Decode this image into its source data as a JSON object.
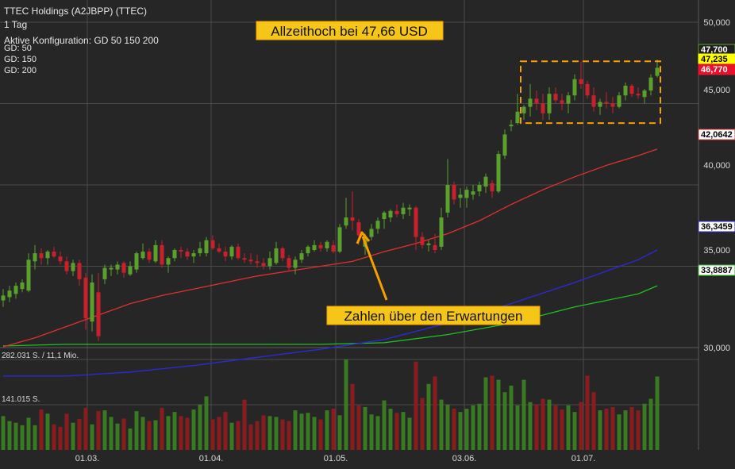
{
  "header": {
    "instrument": "TTEC Holdings (A2JBPP) (TTEC)",
    "interval": "1 Tag",
    "configuration": "Aktive Konfiguration: GD 50 150 200",
    "legend": [
      {
        "label": "GD: 50",
        "color": "#e03030"
      },
      {
        "label": "GD: 150",
        "color": "#2a2adf"
      },
      {
        "label": "GD: 200",
        "color": "#20c020"
      }
    ]
  },
  "colors": {
    "background": "#262626",
    "grid": "#4a4a4a",
    "up_candle": "#5aa02c",
    "down_candle": "#c8202c",
    "volume_up": "#3a7a22",
    "volume_down": "#8a1c20",
    "volume_neutral": "#5a5a5a",
    "ma50": "#e03030",
    "ma150": "#2a2adf",
    "ma200": "#20c020",
    "annotation_bg": "#f5c518",
    "annotation_border": "#f5a000"
  },
  "chart_data": {
    "type": "candlestick",
    "title": "TTEC Holdings (A2JBPP) (TTEC)",
    "y_axis": {
      "ticks": [
        "50,000",
        "45,000",
        "40,000",
        "35,000",
        "30,000"
      ],
      "tick_values": [
        50,
        45,
        40,
        35,
        30
      ]
    },
    "x_axis": {
      "ticks": [
        "01.03.",
        "01.04.",
        "01.05.",
        "03.06.",
        "01.07."
      ]
    },
    "volume_axis": {
      "ticks": [
        "282.031 S. / 11,1 Mio.",
        "141.015 S."
      ]
    },
    "price_tags": [
      {
        "label": "47,700",
        "value": 47.7,
        "bg": "#1f1f1f",
        "fg": "#ffffff",
        "border": "#5aa02c"
      },
      {
        "label": "47,235",
        "value": 47.235,
        "bg": "#ffff00",
        "fg": "#000000",
        "border": "#ffff00"
      },
      {
        "label": "46,770",
        "value": 46.77,
        "bg": "#e8102c",
        "fg": "#ffffff",
        "border": "#e8102c"
      },
      {
        "label": "42,0642",
        "value": 42.0642,
        "bg": "#ffffff",
        "fg": "#000000",
        "border": "#e03030"
      },
      {
        "label": "36,3459",
        "value": 36.3459,
        "bg": "#ffffff",
        "fg": "#000000",
        "border": "#2a2adf"
      },
      {
        "label": "33,8887",
        "value": 33.8887,
        "bg": "#ffffff",
        "fg": "#000000",
        "border": "#20c020"
      }
    ],
    "annotations": [
      {
        "id": "ath",
        "text": "Allzeithoch bei 47,66 USD"
      },
      {
        "id": "earnings",
        "text": "Zahlen über den Erwartungen"
      }
    ],
    "ath_range": {
      "high": 47.6,
      "low": 43.8
    },
    "candles": [
      {
        "o": 32.9,
        "h": 33.6,
        "l": 32.5,
        "c": 33.2
      },
      {
        "o": 33.1,
        "h": 33.8,
        "l": 32.8,
        "c": 33.5
      },
      {
        "o": 33.3,
        "h": 34.0,
        "l": 33.0,
        "c": 33.8
      },
      {
        "o": 33.6,
        "h": 34.2,
        "l": 33.4,
        "c": 34.0
      },
      {
        "o": 33.5,
        "h": 35.8,
        "l": 33.4,
        "c": 35.4
      },
      {
        "o": 35.3,
        "h": 36.3,
        "l": 34.8,
        "c": 35.8
      },
      {
        "o": 35.8,
        "h": 36.1,
        "l": 35.1,
        "c": 35.5
      },
      {
        "o": 35.5,
        "h": 36.0,
        "l": 35.1,
        "c": 35.9
      },
      {
        "o": 35.9,
        "h": 36.2,
        "l": 35.5,
        "c": 35.6
      },
      {
        "o": 35.6,
        "h": 35.9,
        "l": 35.1,
        "c": 35.3
      },
      {
        "o": 35.3,
        "h": 35.6,
        "l": 34.5,
        "c": 34.7
      },
      {
        "o": 34.7,
        "h": 35.4,
        "l": 34.4,
        "c": 35.2
      },
      {
        "o": 35.2,
        "h": 35.4,
        "l": 33.8,
        "c": 34.2
      },
      {
        "o": 34.3,
        "h": 34.6,
        "l": 31.1,
        "c": 31.8
      },
      {
        "o": 31.6,
        "h": 34.5,
        "l": 31.0,
        "c": 34.0
      },
      {
        "o": 33.4,
        "h": 34.6,
        "l": 30.4,
        "c": 30.7
      },
      {
        "o": 34.2,
        "h": 35.1,
        "l": 33.9,
        "c": 34.9
      },
      {
        "o": 34.8,
        "h": 35.1,
        "l": 34.4,
        "c": 34.9
      },
      {
        "o": 34.8,
        "h": 35.3,
        "l": 34.5,
        "c": 35.1
      },
      {
        "o": 35.2,
        "h": 35.3,
        "l": 34.3,
        "c": 34.6
      },
      {
        "o": 34.5,
        "h": 35.3,
        "l": 34.4,
        "c": 35.0
      },
      {
        "o": 34.8,
        "h": 35.9,
        "l": 34.6,
        "c": 35.8
      },
      {
        "o": 35.5,
        "h": 36.4,
        "l": 35.4,
        "c": 35.9
      },
      {
        "o": 35.9,
        "h": 36.1,
        "l": 35.2,
        "c": 35.4
      },
      {
        "o": 35.3,
        "h": 36.6,
        "l": 35.2,
        "c": 36.3
      },
      {
        "o": 36.3,
        "h": 36.6,
        "l": 34.9,
        "c": 35.1
      },
      {
        "o": 35.1,
        "h": 35.6,
        "l": 34.6,
        "c": 35.5
      },
      {
        "o": 35.5,
        "h": 36.1,
        "l": 35.3,
        "c": 36.0
      },
      {
        "o": 36.0,
        "h": 36.2,
        "l": 35.5,
        "c": 35.9
      },
      {
        "o": 35.9,
        "h": 36.1,
        "l": 35.4,
        "c": 35.6
      },
      {
        "o": 35.6,
        "h": 36.0,
        "l": 35.2,
        "c": 35.8
      },
      {
        "o": 35.8,
        "h": 36.5,
        "l": 35.6,
        "c": 36.1
      },
      {
        "o": 35.8,
        "h": 36.8,
        "l": 35.6,
        "c": 36.6
      },
      {
        "o": 36.6,
        "h": 36.9,
        "l": 36.0,
        "c": 36.1
      },
      {
        "o": 36.1,
        "h": 36.4,
        "l": 35.8,
        "c": 35.9
      },
      {
        "o": 35.9,
        "h": 36.2,
        "l": 35.3,
        "c": 35.6
      },
      {
        "o": 35.6,
        "h": 36.3,
        "l": 35.4,
        "c": 36.2
      },
      {
        "o": 36.2,
        "h": 36.4,
        "l": 35.4,
        "c": 35.5
      },
      {
        "o": 35.5,
        "h": 35.8,
        "l": 35.2,
        "c": 35.4
      },
      {
        "o": 35.4,
        "h": 35.8,
        "l": 35.1,
        "c": 35.3
      },
      {
        "o": 35.3,
        "h": 35.7,
        "l": 34.9,
        "c": 35.2
      },
      {
        "o": 35.2,
        "h": 35.5,
        "l": 34.8,
        "c": 35.0
      },
      {
        "o": 35.0,
        "h": 35.9,
        "l": 34.8,
        "c": 35.5
      },
      {
        "o": 35.2,
        "h": 36.5,
        "l": 35.1,
        "c": 36.1
      },
      {
        "o": 36.1,
        "h": 36.2,
        "l": 35.3,
        "c": 35.5
      },
      {
        "o": 35.5,
        "h": 35.7,
        "l": 34.7,
        "c": 34.9
      },
      {
        "o": 34.9,
        "h": 35.6,
        "l": 34.5,
        "c": 35.4
      },
      {
        "o": 35.4,
        "h": 36.0,
        "l": 35.2,
        "c": 35.8
      },
      {
        "o": 35.8,
        "h": 36.3,
        "l": 35.6,
        "c": 36.2
      },
      {
        "o": 36.0,
        "h": 36.6,
        "l": 35.9,
        "c": 36.3
      },
      {
        "o": 36.3,
        "h": 36.5,
        "l": 35.9,
        "c": 36.1
      },
      {
        "o": 36.1,
        "h": 36.6,
        "l": 35.9,
        "c": 36.5
      },
      {
        "o": 36.3,
        "h": 36.6,
        "l": 35.8,
        "c": 35.9
      },
      {
        "o": 35.9,
        "h": 37.6,
        "l": 35.8,
        "c": 37.4
      },
      {
        "o": 37.5,
        "h": 39.2,
        "l": 37.3,
        "c": 38.0
      },
      {
        "o": 38.0,
        "h": 39.6,
        "l": 37.2,
        "c": 37.8
      },
      {
        "o": 37.7,
        "h": 37.9,
        "l": 36.3,
        "c": 36.9
      },
      {
        "o": 36.2,
        "h": 37.0,
        "l": 35.7,
        "c": 36.8
      },
      {
        "o": 36.8,
        "h": 37.6,
        "l": 36.6,
        "c": 37.3
      },
      {
        "o": 37.3,
        "h": 38.0,
        "l": 37.0,
        "c": 37.8
      },
      {
        "o": 37.9,
        "h": 38.4,
        "l": 37.3,
        "c": 38.3
      },
      {
        "o": 38.0,
        "h": 38.5,
        "l": 37.7,
        "c": 38.4
      },
      {
        "o": 38.4,
        "h": 38.8,
        "l": 38.0,
        "c": 38.2
      },
      {
        "o": 38.2,
        "h": 38.9,
        "l": 37.9,
        "c": 38.6
      },
      {
        "o": 38.5,
        "h": 38.8,
        "l": 38.1,
        "c": 38.6
      },
      {
        "o": 38.6,
        "h": 38.7,
        "l": 36.0,
        "c": 36.8
      },
      {
        "o": 36.8,
        "h": 37.1,
        "l": 36.1,
        "c": 36.3
      },
      {
        "o": 36.3,
        "h": 36.6,
        "l": 35.9,
        "c": 36.4
      },
      {
        "o": 36.3,
        "h": 37.0,
        "l": 35.8,
        "c": 36.0
      },
      {
        "o": 36.2,
        "h": 38.6,
        "l": 36.0,
        "c": 38.0
      },
      {
        "o": 38.3,
        "h": 41.6,
        "l": 38.0,
        "c": 40.0
      },
      {
        "o": 40.0,
        "h": 40.2,
        "l": 38.8,
        "c": 39.1
      },
      {
        "o": 39.2,
        "h": 39.8,
        "l": 38.6,
        "c": 39.4
      },
      {
        "o": 39.2,
        "h": 39.9,
        "l": 38.6,
        "c": 39.7
      },
      {
        "o": 39.4,
        "h": 40.0,
        "l": 39.1,
        "c": 39.6
      },
      {
        "o": 39.6,
        "h": 40.2,
        "l": 39.3,
        "c": 40.0
      },
      {
        "o": 39.9,
        "h": 40.7,
        "l": 39.5,
        "c": 40.5
      },
      {
        "o": 40.1,
        "h": 40.3,
        "l": 39.2,
        "c": 39.6
      },
      {
        "o": 39.6,
        "h": 42.1,
        "l": 39.5,
        "c": 41.9
      },
      {
        "o": 41.8,
        "h": 43.4,
        "l": 41.6,
        "c": 43.1
      },
      {
        "o": 43.6,
        "h": 44.0,
        "l": 43.3,
        "c": 43.7
      },
      {
        "o": 43.8,
        "h": 45.6,
        "l": 43.7,
        "c": 44.5
      },
      {
        "o": 44.4,
        "h": 44.9,
        "l": 44.0,
        "c": 44.8
      },
      {
        "o": 44.8,
        "h": 46.2,
        "l": 44.2,
        "c": 45.3
      },
      {
        "o": 45.3,
        "h": 45.8,
        "l": 44.6,
        "c": 45.0
      },
      {
        "o": 45.0,
        "h": 45.6,
        "l": 44.0,
        "c": 44.4
      },
      {
        "o": 44.4,
        "h": 46.0,
        "l": 44.0,
        "c": 45.6
      },
      {
        "o": 45.6,
        "h": 46.0,
        "l": 45.0,
        "c": 45.2
      },
      {
        "o": 45.2,
        "h": 45.6,
        "l": 44.6,
        "c": 45.0
      },
      {
        "o": 45.0,
        "h": 45.7,
        "l": 44.4,
        "c": 45.5
      },
      {
        "o": 45.5,
        "h": 46.8,
        "l": 45.2,
        "c": 46.5
      },
      {
        "o": 46.5,
        "h": 47.6,
        "l": 45.9,
        "c": 46.2
      },
      {
        "o": 46.2,
        "h": 46.4,
        "l": 45.3,
        "c": 45.5
      },
      {
        "o": 45.5,
        "h": 46.0,
        "l": 44.5,
        "c": 44.8
      },
      {
        "o": 44.8,
        "h": 45.3,
        "l": 44.3,
        "c": 45.1
      },
      {
        "o": 45.1,
        "h": 45.7,
        "l": 44.7,
        "c": 45.0
      },
      {
        "o": 45.0,
        "h": 45.4,
        "l": 44.4,
        "c": 44.8
      },
      {
        "o": 44.8,
        "h": 45.7,
        "l": 44.7,
        "c": 45.5
      },
      {
        "o": 45.5,
        "h": 46.3,
        "l": 45.2,
        "c": 46.1
      },
      {
        "o": 46.1,
        "h": 46.2,
        "l": 45.4,
        "c": 45.6
      },
      {
        "o": 45.6,
        "h": 46.0,
        "l": 45.3,
        "c": 45.5
      },
      {
        "o": 45.4,
        "h": 45.9,
        "l": 45.0,
        "c": 45.8
      },
      {
        "o": 45.8,
        "h": 46.8,
        "l": 45.5,
        "c": 46.6
      },
      {
        "o": 46.7,
        "h": 47.7,
        "l": 46.6,
        "c": 47.2
      }
    ],
    "volumes": [
      82,
      70,
      66,
      60,
      78,
      60,
      98,
      88,
      62,
      56,
      88,
      66,
      75,
      102,
      62,
      94,
      96,
      80,
      64,
      76,
      52,
      94,
      80,
      70,
      72,
      102,
      82,
      92,
      82,
      78,
      98,
      110,
      130,
      74,
      80,
      92,
      66,
      70,
      122,
      62,
      70,
      84,
      82,
      80,
      74,
      70,
      96,
      88,
      90,
      80,
      74,
      96,
      100,
      84,
      220,
      160,
      108,
      104,
      86,
      82,
      120,
      100,
      90,
      92,
      78,
      214,
      126,
      160,
      178,
      122,
      110,
      100,
      92,
      100,
      108,
      112,
      176,
      180,
      170,
      140,
      156,
      108,
      170,
      116,
      110,
      124,
      122,
      108,
      98,
      108,
      92,
      116,
      180,
      140,
      96,
      100,
      104,
      86,
      96,
      104,
      96,
      112,
      124,
      178
    ],
    "ma50": [
      {
        "i": 0,
        "v": 30.05
      },
      {
        "i": 5,
        "v": 30.6
      },
      {
        "i": 10,
        "v": 31.3
      },
      {
        "i": 15,
        "v": 32.0
      },
      {
        "i": 20,
        "v": 32.7
      },
      {
        "i": 25,
        "v": 33.2
      },
      {
        "i": 30,
        "v": 33.6
      },
      {
        "i": 35,
        "v": 34.0
      },
      {
        "i": 40,
        "v": 34.4
      },
      {
        "i": 45,
        "v": 34.7
      },
      {
        "i": 50,
        "v": 35.0
      },
      {
        "i": 55,
        "v": 35.3
      },
      {
        "i": 60,
        "v": 35.9
      },
      {
        "i": 65,
        "v": 36.4
      },
      {
        "i": 70,
        "v": 37.0
      },
      {
        "i": 75,
        "v": 37.8
      },
      {
        "i": 80,
        "v": 38.8
      },
      {
        "i": 85,
        "v": 39.7
      },
      {
        "i": 90,
        "v": 40.5
      },
      {
        "i": 95,
        "v": 41.2
      },
      {
        "i": 100,
        "v": 41.8
      },
      {
        "i": 103,
        "v": 42.2
      }
    ],
    "ma150": [
      {
        "i": 0,
        "v": 28.25
      },
      {
        "i": 10,
        "v": 28.25
      },
      {
        "i": 20,
        "v": 28.5
      },
      {
        "i": 30,
        "v": 28.9
      },
      {
        "i": 40,
        "v": 29.4
      },
      {
        "i": 50,
        "v": 29.9
      },
      {
        "i": 60,
        "v": 30.5
      },
      {
        "i": 70,
        "v": 31.5
      },
      {
        "i": 80,
        "v": 32.7
      },
      {
        "i": 90,
        "v": 34.0
      },
      {
        "i": 100,
        "v": 35.4
      },
      {
        "i": 103,
        "v": 36.0
      }
    ],
    "ma200": [
      {
        "i": 0,
        "v": 30.1
      },
      {
        "i": 10,
        "v": 30.2
      },
      {
        "i": 20,
        "v": 30.2
      },
      {
        "i": 30,
        "v": 30.2
      },
      {
        "i": 40,
        "v": 30.2
      },
      {
        "i": 50,
        "v": 30.2
      },
      {
        "i": 60,
        "v": 30.3
      },
      {
        "i": 70,
        "v": 30.8
      },
      {
        "i": 80,
        "v": 31.5
      },
      {
        "i": 90,
        "v": 32.5
      },
      {
        "i": 100,
        "v": 33.3
      },
      {
        "i": 103,
        "v": 33.8
      }
    ]
  }
}
